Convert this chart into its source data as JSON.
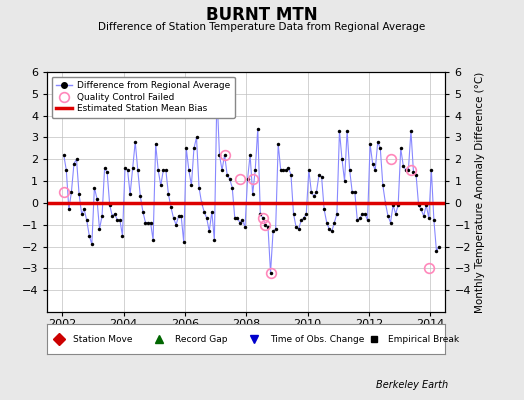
{
  "title": "BURNT MTN",
  "subtitle": "Difference of Station Temperature Data from Regional Average",
  "ylabel": "Monthly Temperature Anomaly Difference (°C)",
  "xlabel_bottom": "Berkeley Earth",
  "xlim": [
    2001.5,
    2014.5
  ],
  "ylim": [
    -5,
    6
  ],
  "yticks": [
    -4,
    -3,
    -2,
    -1,
    0,
    1,
    2,
    3,
    4,
    5,
    6
  ],
  "xticks": [
    2002,
    2004,
    2006,
    2008,
    2010,
    2012,
    2014
  ],
  "bias_value": 0.0,
  "line_color": "#8888ff",
  "dot_color": "#000000",
  "bias_color": "#dd0000",
  "qc_color": "#ff88bb",
  "bg_color": "#e8e8e8",
  "plot_bg_color": "#ffffff",
  "data": [
    [
      2002.0417,
      2.2
    ],
    [
      2002.125,
      1.5
    ],
    [
      2002.2083,
      -0.3
    ],
    [
      2002.2917,
      0.5
    ],
    [
      2002.375,
      1.8
    ],
    [
      2002.4583,
      2.0
    ],
    [
      2002.5417,
      0.4
    ],
    [
      2002.625,
      -0.5
    ],
    [
      2002.7083,
      -0.3
    ],
    [
      2002.7917,
      -0.8
    ],
    [
      2002.875,
      -1.5
    ],
    [
      2002.9583,
      -1.9
    ],
    [
      2003.0417,
      0.7
    ],
    [
      2003.125,
      0.2
    ],
    [
      2003.2083,
      -1.2
    ],
    [
      2003.2917,
      -0.6
    ],
    [
      2003.375,
      1.6
    ],
    [
      2003.4583,
      1.4
    ],
    [
      2003.5417,
      -0.1
    ],
    [
      2003.625,
      -0.6
    ],
    [
      2003.7083,
      -0.5
    ],
    [
      2003.7917,
      -0.8
    ],
    [
      2003.875,
      -0.8
    ],
    [
      2003.9583,
      -1.5
    ],
    [
      2004.0417,
      1.6
    ],
    [
      2004.125,
      1.5
    ],
    [
      2004.2083,
      0.4
    ],
    [
      2004.2917,
      1.6
    ],
    [
      2004.375,
      2.8
    ],
    [
      2004.4583,
      1.5
    ],
    [
      2004.5417,
      0.3
    ],
    [
      2004.625,
      -0.4
    ],
    [
      2004.7083,
      -0.9
    ],
    [
      2004.7917,
      -0.9
    ],
    [
      2004.875,
      -0.9
    ],
    [
      2004.9583,
      -1.7
    ],
    [
      2005.0417,
      2.7
    ],
    [
      2005.125,
      1.5
    ],
    [
      2005.2083,
      0.8
    ],
    [
      2005.2917,
      1.5
    ],
    [
      2005.375,
      1.5
    ],
    [
      2005.4583,
      0.4
    ],
    [
      2005.5417,
      -0.2
    ],
    [
      2005.625,
      -0.7
    ],
    [
      2005.7083,
      -1.0
    ],
    [
      2005.7917,
      -0.6
    ],
    [
      2005.875,
      -0.6
    ],
    [
      2005.9583,
      -1.8
    ],
    [
      2006.0417,
      2.5
    ],
    [
      2006.125,
      1.5
    ],
    [
      2006.2083,
      0.8
    ],
    [
      2006.2917,
      2.5
    ],
    [
      2006.375,
      3.0
    ],
    [
      2006.4583,
      0.7
    ],
    [
      2006.5417,
      0.0
    ],
    [
      2006.625,
      -0.4
    ],
    [
      2006.7083,
      -0.7
    ],
    [
      2006.7917,
      -1.3
    ],
    [
      2006.875,
      -0.4
    ],
    [
      2006.9583,
      -1.7
    ],
    [
      2007.0417,
      5.0
    ],
    [
      2007.125,
      2.2
    ],
    [
      2007.2083,
      1.5
    ],
    [
      2007.2917,
      2.2
    ],
    [
      2007.375,
      1.3
    ],
    [
      2007.4583,
      1.1
    ],
    [
      2007.5417,
      0.7
    ],
    [
      2007.625,
      -0.7
    ],
    [
      2007.7083,
      -0.7
    ],
    [
      2007.7917,
      -0.9
    ],
    [
      2007.875,
      -0.8
    ],
    [
      2007.9583,
      -1.1
    ],
    [
      2008.0417,
      1.1
    ],
    [
      2008.125,
      2.2
    ],
    [
      2008.2083,
      0.4
    ],
    [
      2008.2917,
      1.5
    ],
    [
      2008.375,
      3.4
    ],
    [
      2008.4583,
      -0.5
    ],
    [
      2008.5417,
      -0.7
    ],
    [
      2008.625,
      -1.0
    ],
    [
      2008.7083,
      -1.1
    ],
    [
      2008.7917,
      -3.2
    ],
    [
      2008.875,
      -1.3
    ],
    [
      2008.9583,
      -1.2
    ],
    [
      2009.0417,
      2.7
    ],
    [
      2009.125,
      1.5
    ],
    [
      2009.2083,
      1.5
    ],
    [
      2009.2917,
      1.5
    ],
    [
      2009.375,
      1.6
    ],
    [
      2009.4583,
      1.3
    ],
    [
      2009.5417,
      -0.5
    ],
    [
      2009.625,
      -1.1
    ],
    [
      2009.7083,
      -1.2
    ],
    [
      2009.7917,
      -0.8
    ],
    [
      2009.875,
      -0.7
    ],
    [
      2009.9583,
      -0.5
    ],
    [
      2010.0417,
      1.5
    ],
    [
      2010.125,
      0.5
    ],
    [
      2010.2083,
      0.3
    ],
    [
      2010.2917,
      0.5
    ],
    [
      2010.375,
      1.3
    ],
    [
      2010.4583,
      1.2
    ],
    [
      2010.5417,
      -0.3
    ],
    [
      2010.625,
      -0.9
    ],
    [
      2010.7083,
      -1.2
    ],
    [
      2010.7917,
      -1.3
    ],
    [
      2010.875,
      -0.9
    ],
    [
      2010.9583,
      -0.5
    ],
    [
      2011.0417,
      3.3
    ],
    [
      2011.125,
      2.0
    ],
    [
      2011.2083,
      1.0
    ],
    [
      2011.2917,
      3.3
    ],
    [
      2011.375,
      1.5
    ],
    [
      2011.4583,
      0.5
    ],
    [
      2011.5417,
      0.5
    ],
    [
      2011.625,
      -0.8
    ],
    [
      2011.7083,
      -0.7
    ],
    [
      2011.7917,
      -0.5
    ],
    [
      2011.875,
      -0.5
    ],
    [
      2011.9583,
      -0.8
    ],
    [
      2012.0417,
      2.7
    ],
    [
      2012.125,
      1.8
    ],
    [
      2012.2083,
      1.5
    ],
    [
      2012.2917,
      2.8
    ],
    [
      2012.375,
      2.5
    ],
    [
      2012.4583,
      0.8
    ],
    [
      2012.5417,
      0.0
    ],
    [
      2012.625,
      -0.6
    ],
    [
      2012.7083,
      -0.9
    ],
    [
      2012.7917,
      -0.1
    ],
    [
      2012.875,
      -0.5
    ],
    [
      2012.9583,
      -0.1
    ],
    [
      2013.0417,
      2.5
    ],
    [
      2013.125,
      1.7
    ],
    [
      2013.2083,
      1.5
    ],
    [
      2013.2917,
      1.5
    ],
    [
      2013.375,
      3.3
    ],
    [
      2013.4583,
      1.4
    ],
    [
      2013.5417,
      1.3
    ],
    [
      2013.625,
      -0.1
    ],
    [
      2013.7083,
      -0.3
    ],
    [
      2013.7917,
      -0.6
    ],
    [
      2013.875,
      -0.1
    ],
    [
      2013.9583,
      -0.7
    ],
    [
      2014.0417,
      1.5
    ],
    [
      2014.125,
      -0.8
    ],
    [
      2014.2083,
      -2.2
    ],
    [
      2014.2917,
      -2.0
    ]
  ],
  "qc_failed": [
    [
      2002.0417,
      0.5
    ],
    [
      2007.2917,
      2.2
    ],
    [
      2007.7917,
      1.1
    ],
    [
      2008.2083,
      1.1
    ],
    [
      2008.5417,
      -0.7
    ],
    [
      2008.625,
      -1.0
    ],
    [
      2008.7917,
      -3.2
    ],
    [
      2012.7083,
      2.0
    ],
    [
      2013.375,
      1.5
    ],
    [
      2013.9583,
      -3.0
    ]
  ],
  "bottom_legend": {
    "station_move_color": "#cc0000",
    "record_gap_color": "#006600",
    "obs_change_color": "#0000cc",
    "emp_break_color": "#000000"
  }
}
